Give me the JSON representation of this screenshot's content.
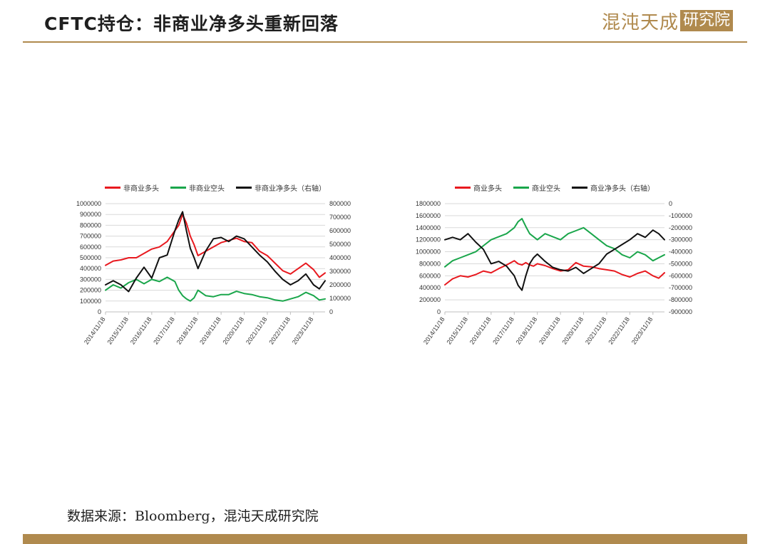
{
  "header": {
    "title": "CFTC持仓：非商业净多头重新回落",
    "logo_main": "混沌天成",
    "logo_box": "研究院"
  },
  "source": "数据来源：Bloomberg，混沌天成研究院",
  "colors": {
    "accent": "#b08a4e",
    "red": "#e8191f",
    "green": "#1aa64b",
    "black": "#111111",
    "grid": "#d9d9d9"
  },
  "chart_data": [
    {
      "type": "line",
      "x_tick_labels": [
        "2014/11/18",
        "2015/11/18",
        "2016/11/18",
        "2017/11/18",
        "2018/11/18",
        "2019/11/18",
        "2020/11/18",
        "2021/11/18",
        "2022/11/18",
        "2023/11/18"
      ],
      "x_dates": [
        "2014/11/18",
        "2015/3/18",
        "2015/7/18",
        "2015/11/18",
        "2016/3/18",
        "2016/7/18",
        "2016/11/18",
        "2017/3/18",
        "2017/7/18",
        "2017/11/18",
        "2018/1/18",
        "2018/3/18",
        "2018/5/18",
        "2018/7/18",
        "2018/9/18",
        "2018/11/18",
        "2019/3/18",
        "2019/7/18",
        "2019/11/18",
        "2020/3/18",
        "2020/7/18",
        "2020/11/18",
        "2021/3/18",
        "2021/7/18",
        "2021/11/18",
        "2022/3/18",
        "2022/7/18",
        "2022/11/18",
        "2023/3/18",
        "2023/7/18",
        "2023/11/18",
        "2024/2/18",
        "2024/5/18"
      ],
      "y_left_ticks": [
        0,
        100000,
        200000,
        300000,
        400000,
        500000,
        600000,
        700000,
        800000,
        900000,
        1000000
      ],
      "y_right_ticks": [
        0,
        100000,
        200000,
        300000,
        400000,
        500000,
        600000,
        700000,
        800000
      ],
      "ylim_left": [
        0,
        1000000
      ],
      "ylim_right": [
        0,
        800000
      ],
      "series": [
        {
          "name": "非商业多头",
          "axis": "left",
          "color": "#e8191f",
          "values": [
            430000,
            470000,
            480000,
            500000,
            500000,
            540000,
            580000,
            600000,
            650000,
            750000,
            800000,
            900000,
            820000,
            700000,
            620000,
            520000,
            560000,
            600000,
            640000,
            660000,
            680000,
            650000,
            640000,
            560000,
            520000,
            450000,
            380000,
            350000,
            400000,
            450000,
            390000,
            320000,
            360000
          ]
        },
        {
          "name": "非商业空头",
          "axis": "left",
          "color": "#1aa64b",
          "values": [
            200000,
            250000,
            220000,
            270000,
            300000,
            260000,
            300000,
            280000,
            320000,
            280000,
            200000,
            150000,
            120000,
            100000,
            130000,
            200000,
            150000,
            140000,
            160000,
            160000,
            190000,
            170000,
            160000,
            140000,
            130000,
            110000,
            100000,
            120000,
            140000,
            180000,
            150000,
            110000,
            120000
          ]
        },
        {
          "name": "非商业净多头（右轴）",
          "axis": "right",
          "color": "#111111",
          "values": [
            200000,
            230000,
            200000,
            150000,
            250000,
            330000,
            250000,
            400000,
            420000,
            600000,
            680000,
            740000,
            600000,
            470000,
            400000,
            320000,
            450000,
            540000,
            550000,
            520000,
            560000,
            540000,
            480000,
            420000,
            370000,
            300000,
            240000,
            200000,
            230000,
            280000,
            200000,
            170000,
            230000
          ]
        }
      ]
    },
    {
      "type": "line",
      "x_tick_labels": [
        "2014/11/18",
        "2015/11/18",
        "2016/11/18",
        "2017/11/18",
        "2018/11/18",
        "2019/11/18",
        "2020/11/18",
        "2021/11/18",
        "2022/11/18",
        "2023/11/18"
      ],
      "x_dates": [
        "2014/11/18",
        "2015/3/18",
        "2015/7/18",
        "2015/11/18",
        "2016/3/18",
        "2016/7/18",
        "2016/11/18",
        "2017/3/18",
        "2017/7/18",
        "2017/11/18",
        "2018/1/18",
        "2018/3/18",
        "2018/5/18",
        "2018/7/18",
        "2018/9/18",
        "2018/11/18",
        "2019/3/18",
        "2019/7/18",
        "2019/11/18",
        "2020/3/18",
        "2020/7/18",
        "2020/11/18",
        "2021/3/18",
        "2021/7/18",
        "2021/11/18",
        "2022/3/18",
        "2022/7/18",
        "2022/11/18",
        "2023/3/18",
        "2023/7/18",
        "2023/11/18",
        "2024/2/18",
        "2024/5/18"
      ],
      "y_left_ticks": [
        0,
        200000,
        400000,
        600000,
        800000,
        1000000,
        1200000,
        1400000,
        1600000,
        1800000
      ],
      "y_right_ticks": [
        -900000,
        -800000,
        -700000,
        -600000,
        -500000,
        -400000,
        -300000,
        -200000,
        -100000,
        0
      ],
      "ylim_left": [
        0,
        1800000
      ],
      "ylim_right": [
        -900000,
        0
      ],
      "series": [
        {
          "name": "商业多头",
          "axis": "left",
          "color": "#e8191f",
          "values": [
            450000,
            550000,
            600000,
            580000,
            620000,
            680000,
            650000,
            720000,
            780000,
            850000,
            800000,
            780000,
            820000,
            780000,
            760000,
            800000,
            770000,
            720000,
            680000,
            700000,
            820000,
            760000,
            750000,
            720000,
            700000,
            680000,
            620000,
            580000,
            640000,
            680000,
            600000,
            560000,
            650000
          ]
        },
        {
          "name": "商业空头",
          "axis": "left",
          "color": "#1aa64b",
          "values": [
            750000,
            850000,
            900000,
            950000,
            1000000,
            1100000,
            1200000,
            1250000,
            1300000,
            1400000,
            1500000,
            1550000,
            1420000,
            1300000,
            1250000,
            1200000,
            1300000,
            1250000,
            1200000,
            1300000,
            1350000,
            1400000,
            1300000,
            1200000,
            1100000,
            1050000,
            950000,
            900000,
            1000000,
            950000,
            850000,
            900000,
            950000
          ]
        },
        {
          "name": "商业净多头（右轴）",
          "axis": "right",
          "color": "#111111",
          "values": [
            -300000,
            -280000,
            -300000,
            -250000,
            -320000,
            -380000,
            -500000,
            -480000,
            -520000,
            -600000,
            -680000,
            -720000,
            -600000,
            -500000,
            -450000,
            -420000,
            -480000,
            -530000,
            -550000,
            -560000,
            -530000,
            -580000,
            -540000,
            -500000,
            -420000,
            -380000,
            -340000,
            -300000,
            -250000,
            -280000,
            -220000,
            -250000,
            -300000
          ]
        }
      ]
    }
  ]
}
